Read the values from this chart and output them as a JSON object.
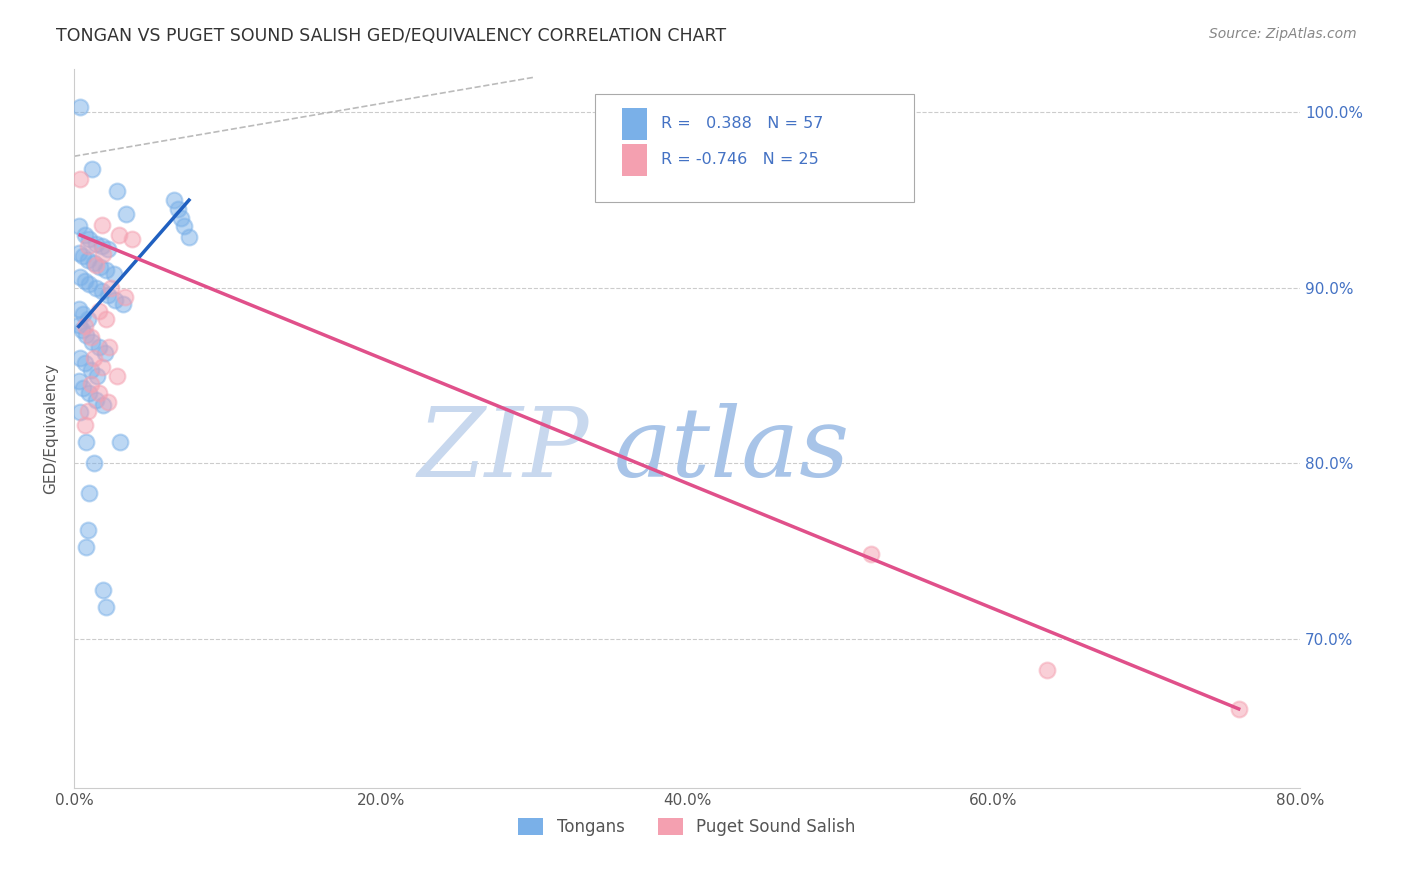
{
  "title": "TONGAN VS PUGET SOUND SALISH GED/EQUIVALENCY CORRELATION CHART",
  "source": "Source: ZipAtlas.com",
  "ylabel": "GED/Equivalency",
  "xmin": 0.0,
  "xmax": 0.8,
  "ymin": 0.615,
  "ymax": 1.025,
  "xtick_labels": [
    "0.0%",
    "",
    "20.0%",
    "",
    "40.0%",
    "",
    "60.0%",
    "",
    "80.0%"
  ],
  "xtick_vals": [
    0.0,
    0.1,
    0.2,
    0.3,
    0.4,
    0.5,
    0.6,
    0.7,
    0.8
  ],
  "ytick_labels": [
    "100.0%",
    "90.0%",
    "80.0%",
    "70.0%"
  ],
  "ytick_vals": [
    1.0,
    0.9,
    0.8,
    0.7
  ],
  "R_tongans": 0.388,
  "N_tongans": 57,
  "R_puget": -0.746,
  "N_puget": 25,
  "tongans_color": "#7ab0e8",
  "puget_color": "#f4a0b0",
  "tongans_line_color": "#2060c0",
  "puget_line_color": "#e0508a",
  "diagonal_color": "#aaaaaa",
  "watermark_zip": "ZIP",
  "watermark_atlas": "atlas",
  "watermark_color_zip": "#c8d8ee",
  "watermark_color_atlas": "#a8c4e8",
  "tongans_scatter": [
    [
      0.004,
      1.003
    ],
    [
      0.012,
      0.968
    ],
    [
      0.028,
      0.955
    ],
    [
      0.034,
      0.942
    ],
    [
      0.003,
      0.935
    ],
    [
      0.007,
      0.93
    ],
    [
      0.01,
      0.928
    ],
    [
      0.014,
      0.925
    ],
    [
      0.018,
      0.924
    ],
    [
      0.022,
      0.922
    ],
    [
      0.003,
      0.92
    ],
    [
      0.006,
      0.918
    ],
    [
      0.009,
      0.916
    ],
    [
      0.013,
      0.914
    ],
    [
      0.017,
      0.912
    ],
    [
      0.021,
      0.91
    ],
    [
      0.026,
      0.908
    ],
    [
      0.004,
      0.906
    ],
    [
      0.007,
      0.904
    ],
    [
      0.01,
      0.902
    ],
    [
      0.014,
      0.9
    ],
    [
      0.018,
      0.898
    ],
    [
      0.022,
      0.896
    ],
    [
      0.027,
      0.893
    ],
    [
      0.032,
      0.891
    ],
    [
      0.003,
      0.888
    ],
    [
      0.006,
      0.885
    ],
    [
      0.009,
      0.882
    ],
    [
      0.003,
      0.879
    ],
    [
      0.005,
      0.876
    ],
    [
      0.008,
      0.873
    ],
    [
      0.012,
      0.869
    ],
    [
      0.016,
      0.866
    ],
    [
      0.02,
      0.863
    ],
    [
      0.004,
      0.86
    ],
    [
      0.007,
      0.857
    ],
    [
      0.011,
      0.853
    ],
    [
      0.015,
      0.85
    ],
    [
      0.003,
      0.847
    ],
    [
      0.006,
      0.843
    ],
    [
      0.01,
      0.84
    ],
    [
      0.014,
      0.836
    ],
    [
      0.019,
      0.833
    ],
    [
      0.004,
      0.829
    ],
    [
      0.008,
      0.812
    ],
    [
      0.013,
      0.8
    ],
    [
      0.01,
      0.783
    ],
    [
      0.009,
      0.762
    ],
    [
      0.008,
      0.752
    ],
    [
      0.019,
      0.728
    ],
    [
      0.021,
      0.718
    ],
    [
      0.03,
      0.812
    ],
    [
      0.065,
      0.95
    ],
    [
      0.068,
      0.945
    ],
    [
      0.07,
      0.94
    ],
    [
      0.072,
      0.935
    ],
    [
      0.075,
      0.929
    ]
  ],
  "puget_scatter": [
    [
      0.004,
      0.962
    ],
    [
      0.018,
      0.936
    ],
    [
      0.029,
      0.93
    ],
    [
      0.038,
      0.928
    ],
    [
      0.009,
      0.924
    ],
    [
      0.019,
      0.919
    ],
    [
      0.014,
      0.913
    ],
    [
      0.024,
      0.9
    ],
    [
      0.033,
      0.895
    ],
    [
      0.016,
      0.887
    ],
    [
      0.021,
      0.882
    ],
    [
      0.007,
      0.878
    ],
    [
      0.011,
      0.872
    ],
    [
      0.023,
      0.866
    ],
    [
      0.013,
      0.86
    ],
    [
      0.018,
      0.855
    ],
    [
      0.028,
      0.85
    ],
    [
      0.011,
      0.845
    ],
    [
      0.016,
      0.84
    ],
    [
      0.022,
      0.835
    ],
    [
      0.009,
      0.83
    ],
    [
      0.007,
      0.822
    ],
    [
      0.52,
      0.748
    ],
    [
      0.635,
      0.682
    ],
    [
      0.76,
      0.66
    ]
  ],
  "tongans_line": [
    [
      0.003,
      0.878
    ],
    [
      0.075,
      0.95
    ]
  ],
  "puget_line": [
    [
      0.004,
      0.93
    ],
    [
      0.76,
      0.66
    ]
  ]
}
